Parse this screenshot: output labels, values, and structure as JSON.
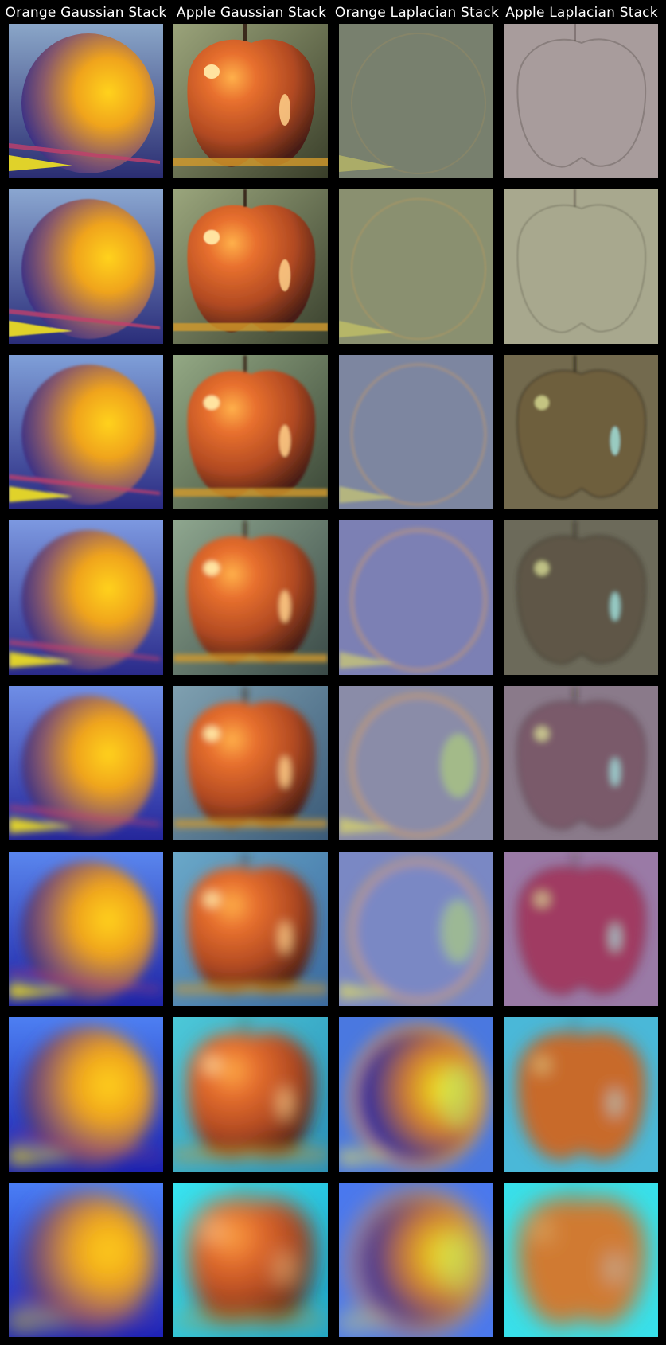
{
  "columns": [
    {
      "title": "Orange Gaussian Stack",
      "kind": "orange-gauss"
    },
    {
      "title": "Apple Gaussian Stack",
      "kind": "apple-gauss"
    },
    {
      "title": "Orange Laplacian Stack",
      "kind": "orange-lap"
    },
    {
      "title": "Apple Laplacian Stack",
      "kind": "apple-lap"
    }
  ],
  "levels": 8
}
